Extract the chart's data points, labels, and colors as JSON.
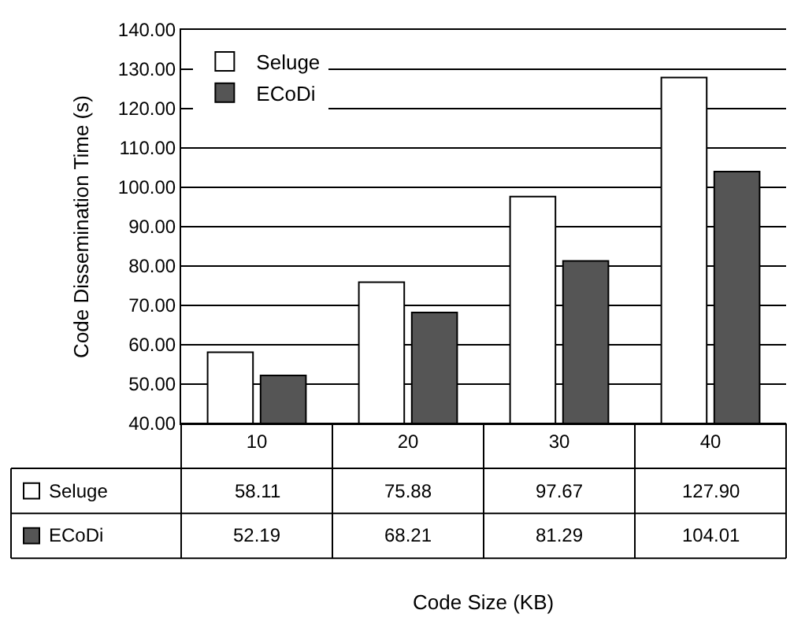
{
  "chart_data": {
    "type": "bar",
    "categories": [
      "10",
      "20",
      "30",
      "40"
    ],
    "series": [
      {
        "name": "Seluge",
        "color": "#ffffff",
        "values": [
          58.11,
          75.88,
          97.67,
          127.9
        ],
        "value_labels": [
          "58.11",
          "75.88",
          "97.67",
          "127.90"
        ]
      },
      {
        "name": "ECoDi",
        "color": "#555555",
        "values": [
          52.19,
          68.21,
          81.29,
          104.01
        ],
        "value_labels": [
          "52.19",
          "68.21",
          "81.29",
          "104.01"
        ]
      }
    ],
    "ylabel": "Code Dissemination Time (s)",
    "annotations": [
      "Code Size (KB)"
    ],
    "ylim": [
      40,
      140
    ],
    "yticks": [
      {
        "value": 40,
        "label": "40.00"
      },
      {
        "value": 50,
        "label": "50.00"
      },
      {
        "value": 60,
        "label": "60.00"
      },
      {
        "value": 70,
        "label": "70.00"
      },
      {
        "value": 80,
        "label": "80.00"
      },
      {
        "value": 90,
        "label": "90.00"
      },
      {
        "value": 100,
        "label": "100.00"
      },
      {
        "value": 110,
        "label": "110.00"
      },
      {
        "value": 120,
        "label": "120.00"
      },
      {
        "value": 130,
        "label": "130.00"
      },
      {
        "value": 140,
        "label": "140.00"
      }
    ],
    "grid": "y",
    "legend": "top left"
  }
}
